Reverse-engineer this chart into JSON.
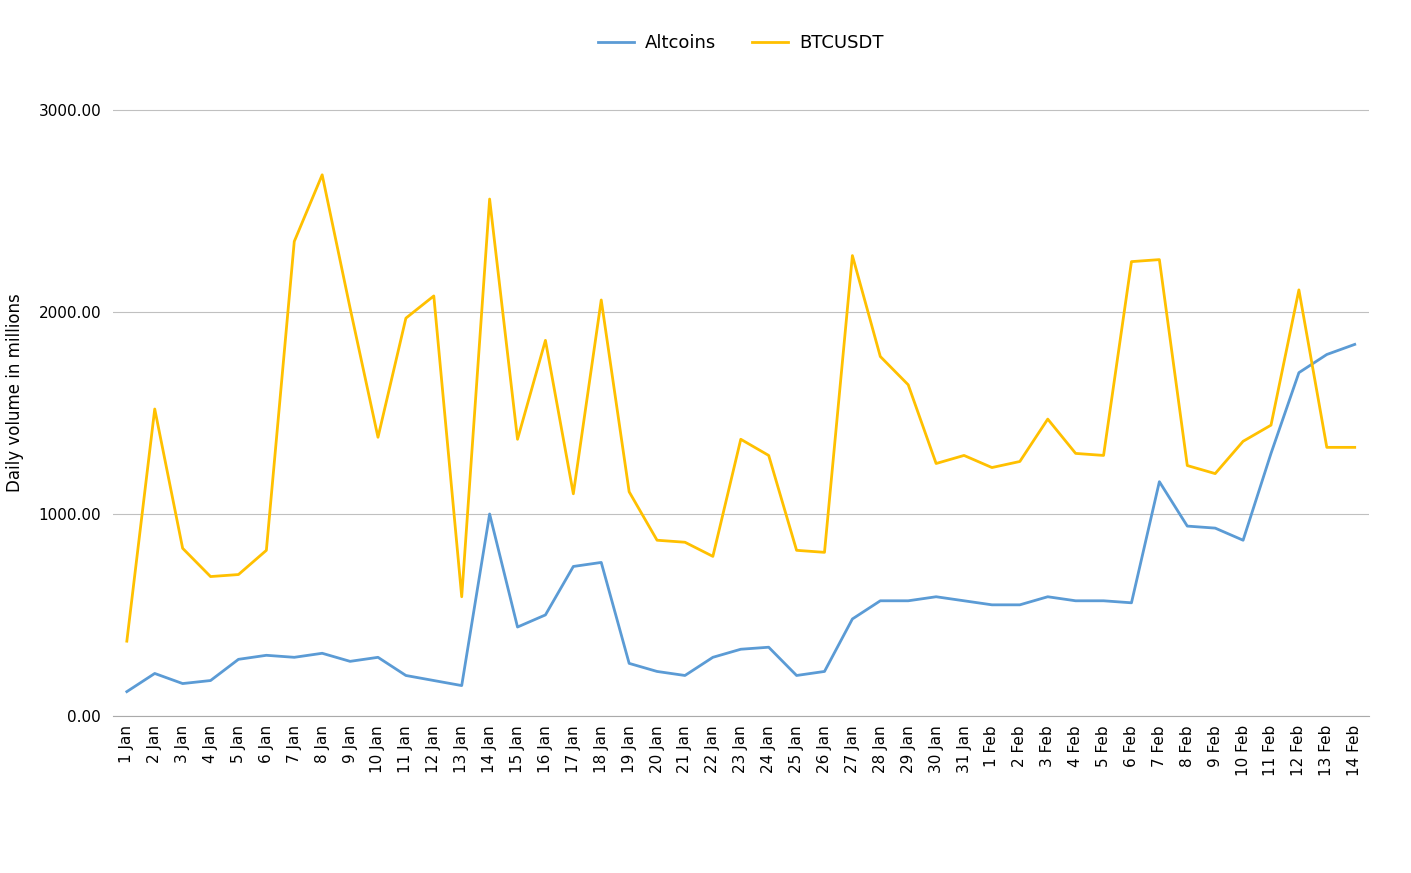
{
  "labels": [
    "1 Jan",
    "2 Jan",
    "3 Jan",
    "4 Jan",
    "5 Jan",
    "6 Jan",
    "7 Jan",
    "8 Jan",
    "9 Jan",
    "10 Jan",
    "11 Jan",
    "12 Jan",
    "13 Jan",
    "14 Jan",
    "15 Jan",
    "16 Jan",
    "17 Jan",
    "18 Jan",
    "19 Jan",
    "20 Jan",
    "21 Jan",
    "22 Jan",
    "23 Jan",
    "24 Jan",
    "25 Jan",
    "26 Jan",
    "27 Jan",
    "28 Jan",
    "29 Jan",
    "30 Jan",
    "31 Jan",
    "1 Feb",
    "2 Feb",
    "3 Feb",
    "4 Feb",
    "5 Feb",
    "6 Feb",
    "7 Feb",
    "8 Feb",
    "9 Feb",
    "10 Feb",
    "11 Feb",
    "12 Feb",
    "13 Feb",
    "14 Feb"
  ],
  "altcoins": [
    120,
    210,
    160,
    175,
    280,
    300,
    290,
    310,
    270,
    290,
    200,
    175,
    150,
    1000,
    440,
    500,
    740,
    760,
    260,
    220,
    200,
    290,
    330,
    340,
    200,
    220,
    480,
    570,
    570,
    590,
    570,
    550,
    550,
    590,
    570,
    570,
    560,
    1160,
    940,
    930,
    870,
    1300,
    1700,
    1790,
    1840
  ],
  "btcusdt": [
    370,
    1520,
    830,
    690,
    700,
    820,
    2350,
    2680,
    2020,
    1380,
    1970,
    2080,
    590,
    2560,
    1370,
    1860,
    1100,
    2060,
    1110,
    870,
    860,
    790,
    1370,
    1290,
    820,
    810,
    2280,
    1780,
    1640,
    1250,
    1290,
    1230,
    1260,
    1470,
    1300,
    1290,
    2250,
    2260,
    1240,
    1200,
    1360,
    1440,
    2110,
    1330,
    1330
  ],
  "altcoins_color": "#5B9BD5",
  "btcusdt_color": "#FFC000",
  "background_color": "#ffffff",
  "ylabel": "Daily volume in millions",
  "ylim": [
    0,
    3200
  ],
  "yticks": [
    0,
    1000,
    2000,
    3000
  ],
  "ytick_labels": [
    "0.00",
    "1000.00",
    "2000.00",
    "3000.00"
  ],
  "legend_labels": [
    "Altcoins",
    "BTCUSDT"
  ],
  "grid_color": "#c0c0c0",
  "legend_fontsize": 13,
  "axis_label_fontsize": 12,
  "tick_fontsize": 11
}
